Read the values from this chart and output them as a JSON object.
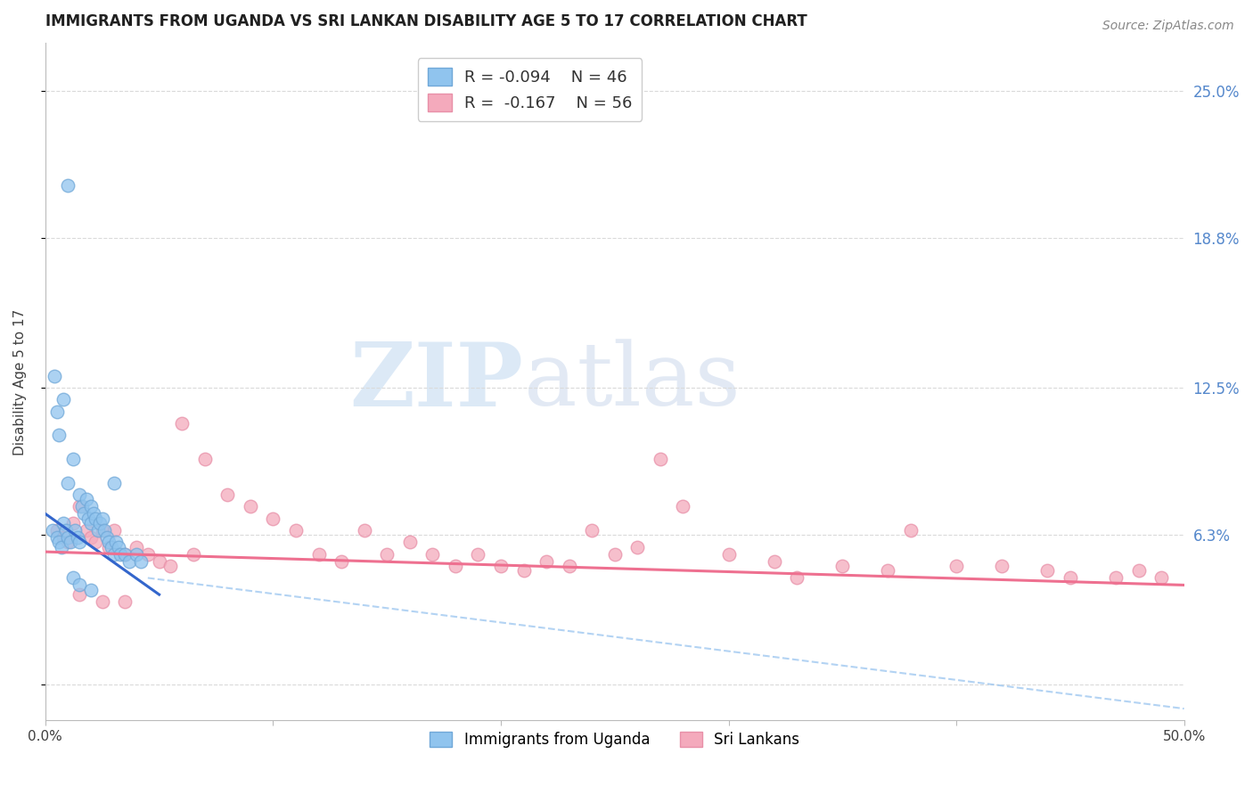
{
  "title": "IMMIGRANTS FROM UGANDA VS SRI LANKAN DISABILITY AGE 5 TO 17 CORRELATION CHART",
  "source": "Source: ZipAtlas.com",
  "ylabel": "Disability Age 5 to 17",
  "xlim": [
    0.0,
    50.0
  ],
  "ylim": [
    -1.5,
    27.0
  ],
  "yticks": [
    0.0,
    6.3,
    12.5,
    18.8,
    25.0
  ],
  "ytick_labels": [
    "",
    "6.3%",
    "12.5%",
    "18.8%",
    "25.0%"
  ],
  "color_blue": "#90C4EE",
  "color_pink": "#F4AABC",
  "color_blue_edge": "#70A8D8",
  "color_pink_edge": "#E890A8",
  "color_line_blue": "#3366CC",
  "color_line_pink": "#EE7090",
  "color_dashed": "#A0C8F0",
  "color_grid": "#DADADA",
  "color_title": "#202020",
  "color_ytick": "#5588CC",
  "color_xtick": "#404040",
  "color_source": "#888888",
  "color_axis": "#BBBBBB",
  "watermark_zip": "ZIP",
  "watermark_atlas": "atlas",
  "watermark_color_zip": "#C0D8F0",
  "watermark_color_atlas": "#C0D0E8",
  "legend_r1": "R = -0.094",
  "legend_n1": "N = 46",
  "legend_r2": "R =  -0.167",
  "legend_n2": "N = 56",
  "blue_line_x": [
    0.0,
    5.0
  ],
  "blue_line_y": [
    7.2,
    3.8
  ],
  "dashed_line_x": [
    4.5,
    50.0
  ],
  "dashed_line_y": [
    4.5,
    -1.0
  ],
  "pink_line_x": [
    0.0,
    50.0
  ],
  "pink_line_y": [
    5.6,
    4.2
  ],
  "uganda_x": [
    0.3,
    0.5,
    0.6,
    0.7,
    0.8,
    0.9,
    1.0,
    1.0,
    1.1,
    1.2,
    1.3,
    1.4,
    1.5,
    1.5,
    1.6,
    1.7,
    1.8,
    1.9,
    2.0,
    2.0,
    2.1,
    2.2,
    2.3,
    2.4,
    2.5,
    2.6,
    2.7,
    2.8,
    2.9,
    3.0,
    3.0,
    3.1,
    3.2,
    3.3,
    3.5,
    3.7,
    4.0,
    4.2,
    0.4,
    0.5,
    0.6,
    0.8,
    1.0,
    1.2,
    1.5,
    2.0
  ],
  "uganda_y": [
    6.5,
    6.2,
    6.0,
    5.8,
    6.8,
    6.5,
    8.5,
    6.2,
    6.0,
    9.5,
    6.5,
    6.2,
    8.0,
    6.0,
    7.5,
    7.2,
    7.8,
    7.0,
    7.5,
    6.8,
    7.2,
    7.0,
    6.5,
    6.8,
    7.0,
    6.5,
    6.2,
    6.0,
    5.8,
    8.5,
    5.5,
    6.0,
    5.8,
    5.5,
    5.5,
    5.2,
    5.5,
    5.2,
    13.0,
    11.5,
    10.5,
    12.0,
    21.0,
    4.5,
    4.2,
    4.0
  ],
  "srilanka_x": [
    0.5,
    0.8,
    1.0,
    1.2,
    1.5,
    1.8,
    2.0,
    2.2,
    2.5,
    2.8,
    3.0,
    3.5,
    4.0,
    4.5,
    5.0,
    5.5,
    6.0,
    6.5,
    7.0,
    8.0,
    9.0,
    10.0,
    11.0,
    12.0,
    13.0,
    14.0,
    15.0,
    16.0,
    17.0,
    18.0,
    19.0,
    20.0,
    21.0,
    22.0,
    23.0,
    24.0,
    25.0,
    26.0,
    27.0,
    28.0,
    30.0,
    32.0,
    33.0,
    35.0,
    37.0,
    38.0,
    40.0,
    42.0,
    44.0,
    45.0,
    47.0,
    48.0,
    49.0,
    1.5,
    2.5,
    3.5
  ],
  "srilanka_y": [
    6.5,
    6.2,
    6.0,
    6.8,
    7.5,
    6.5,
    6.2,
    6.0,
    6.5,
    5.8,
    6.5,
    5.5,
    5.8,
    5.5,
    5.2,
    5.0,
    11.0,
    5.5,
    9.5,
    8.0,
    7.5,
    7.0,
    6.5,
    5.5,
    5.2,
    6.5,
    5.5,
    6.0,
    5.5,
    5.0,
    5.5,
    5.0,
    4.8,
    5.2,
    5.0,
    6.5,
    5.5,
    5.8,
    9.5,
    7.5,
    5.5,
    5.2,
    4.5,
    5.0,
    4.8,
    6.5,
    5.0,
    5.0,
    4.8,
    4.5,
    4.5,
    4.8,
    4.5,
    3.8,
    3.5,
    3.5
  ]
}
